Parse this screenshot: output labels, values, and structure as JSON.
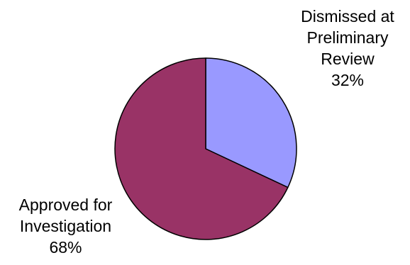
{
  "chart_data": {
    "type": "pie",
    "slices": [
      {
        "label_lines": [
          "Dismissed at",
          "Preliminary",
          "Review"
        ],
        "percent_label": "32%",
        "value": 32,
        "color": "#9999ff"
      },
      {
        "label_lines": [
          "Approved for",
          "Investigation"
        ],
        "percent_label": "68%",
        "value": 68,
        "color": "#993366"
      }
    ],
    "start_angle_deg": 0,
    "direction": "clockwise",
    "edge_color": "#000000"
  }
}
